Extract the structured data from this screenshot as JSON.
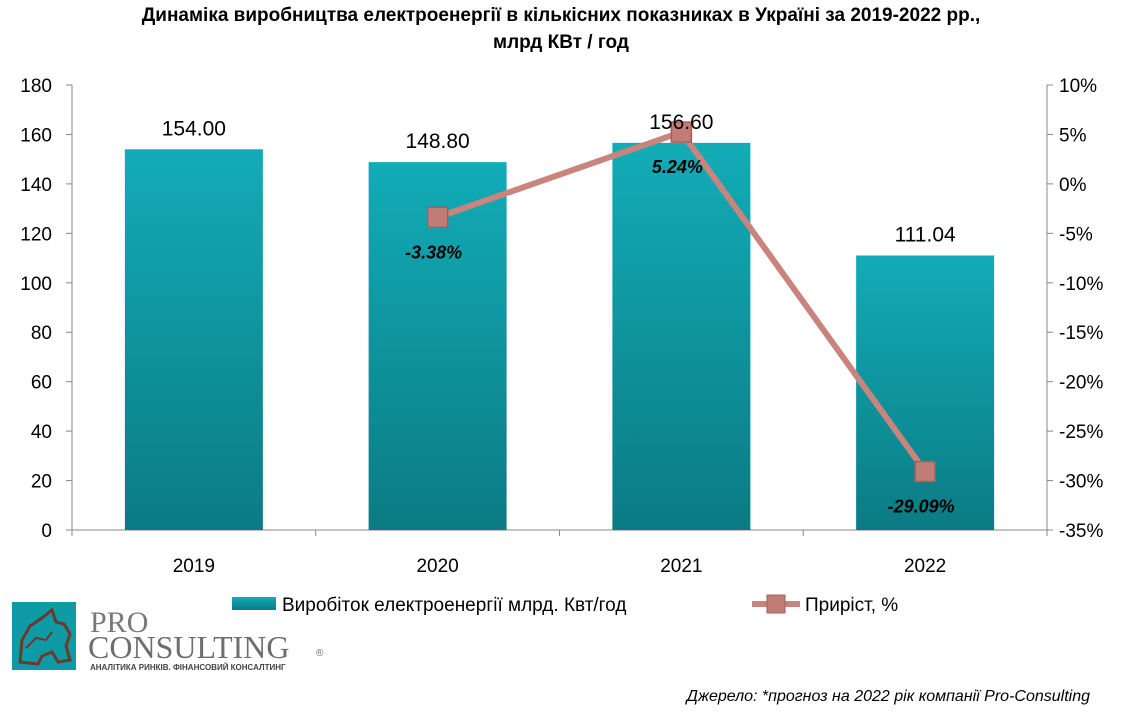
{
  "chart_data": {
    "type": "bar",
    "title_lines": [
      "Динаміка виробництва  електроенергії в кількісних показниках в Україні за 2019-2022 рр.,",
      "млрд КВт / год"
    ],
    "categories": [
      "2019",
      "2020",
      "2021",
      "2022"
    ],
    "series": [
      {
        "name": "Виробіток електроенергії млрд. Квт/год",
        "kind": "bar",
        "axis": "left",
        "color": "#1aa3ad",
        "values": [
          154.0,
          148.8,
          156.6,
          111.04
        ],
        "labels": [
          "154.00",
          "148.80",
          "156.60",
          "111.04"
        ]
      },
      {
        "name": "Приріст, %",
        "kind": "line",
        "axis": "right",
        "color": "#c9857d",
        "values": [
          null,
          -3.38,
          5.24,
          -29.09
        ],
        "labels": [
          "",
          "-3.38%",
          "5.24%",
          "-29.09%"
        ]
      }
    ],
    "y_left": {
      "min": 0,
      "max": 180,
      "step": 20,
      "ticks": [
        "0",
        "20",
        "40",
        "60",
        "80",
        "100",
        "120",
        "140",
        "160",
        "180"
      ]
    },
    "y_right": {
      "min": -35,
      "max": 10,
      "step": 5,
      "ticks": [
        "-35%",
        "-30%",
        "-25%",
        "-20%",
        "-15%",
        "-10%",
        "-5%",
        "0%",
        "5%",
        "10%"
      ]
    },
    "legend_position": "bottom",
    "grid": false
  },
  "logo": {
    "line1": "PRO",
    "line2": "CONSULTING",
    "tagline": "АНАЛІТИКА РИНКІВ. ФІНАНСОВИЙ КОНСАЛТИНГ",
    "mark": "®"
  },
  "source": "Джерело: *прогноз на 2022 рік компанії Pro-Consulting"
}
